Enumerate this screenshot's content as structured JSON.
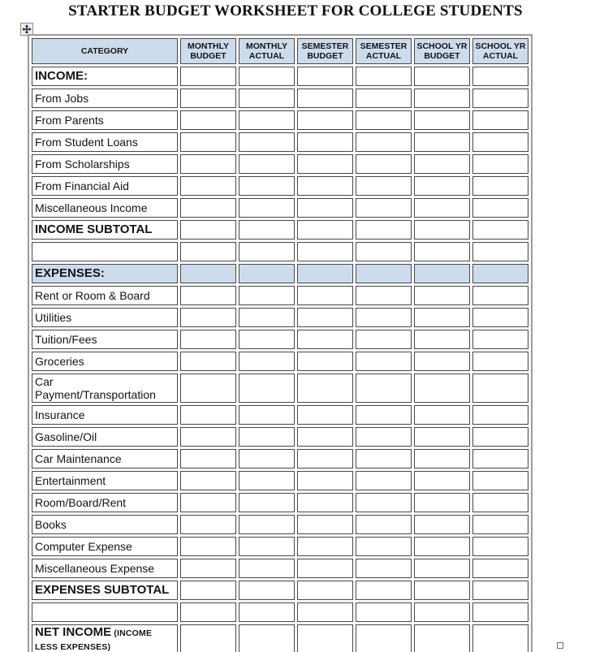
{
  "title": "STARTER BUDGET WORKSHEET FOR COLLEGE STUDENTS",
  "colors": {
    "header_bg": "#cddcec",
    "cell_border": "#474747",
    "frame_border": "#9b9b9b"
  },
  "icons": {
    "table_move": "four-way-move-arrow",
    "table_resize": "square-resize-handle"
  },
  "table": {
    "columns": [
      "CATEGORY",
      "MONTHLY BUDGET",
      "MONTHLY ACTUAL",
      "SEMESTER BUDGET",
      "SEMESTER ACTUAL",
      "SCHOOL YR BUDGET",
      "SCHOOL YR ACTUAL"
    ],
    "value_cells_empty": true,
    "rows": [
      {
        "label": "INCOME:",
        "style": "section"
      },
      {
        "label": "From Jobs",
        "style": "item"
      },
      {
        "label": "From Parents",
        "style": "item"
      },
      {
        "label": "From Student Loans",
        "style": "item"
      },
      {
        "label": "From Scholarships",
        "style": "item"
      },
      {
        "label": "From Financial Aid",
        "style": "item"
      },
      {
        "label": "Miscellaneous Income",
        "style": "item"
      },
      {
        "label": "INCOME SUBTOTAL",
        "style": "subtotal"
      },
      {
        "label": "",
        "style": "blank"
      },
      {
        "label": "EXPENSES:",
        "style": "section",
        "shaded": true
      },
      {
        "label": "Rent or Room & Board",
        "style": "item"
      },
      {
        "label": "Utilities",
        "style": "item"
      },
      {
        "label": "Tuition/Fees",
        "style": "item"
      },
      {
        "label": "Groceries",
        "style": "item"
      },
      {
        "label": "Car Payment/Transportation",
        "style": "item"
      },
      {
        "label": "Insurance",
        "style": "item"
      },
      {
        "label": "Gasoline/Oil",
        "style": "item"
      },
      {
        "label": "Car Maintenance",
        "style": "item"
      },
      {
        "label": "Entertainment",
        "style": "item"
      },
      {
        "label": "Room/Board/Rent",
        "style": "item"
      },
      {
        "label": "Books",
        "style": "item"
      },
      {
        "label": "Computer Expense",
        "style": "item"
      },
      {
        "label": "Miscellaneous Expense",
        "style": "item"
      },
      {
        "label": "EXPENSES SUBTOTAL",
        "style": "subtotal"
      },
      {
        "label": "",
        "style": "blank"
      },
      {
        "label": "NET INCOME",
        "sublabel": "(INCOME LESS EXPENSES)",
        "style": "subtotal"
      }
    ]
  }
}
